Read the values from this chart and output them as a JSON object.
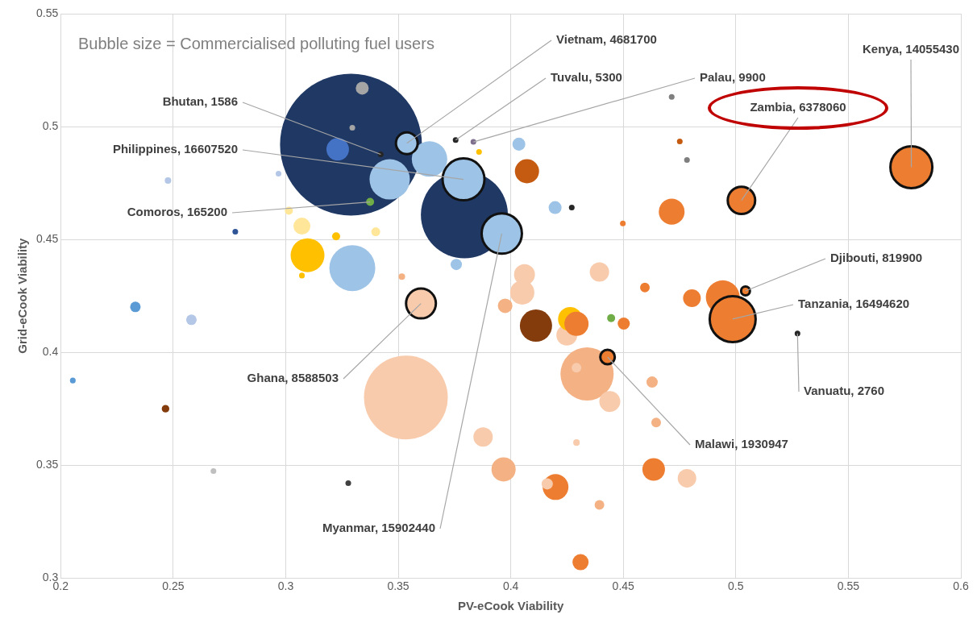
{
  "chart_data": {
    "type": "bubble",
    "xlabel": "PV-eCook Viability",
    "ylabel": "Grid-eCook Viability",
    "xlim": [
      0.2,
      0.6
    ],
    "xticks": [
      0.2,
      0.25,
      0.3,
      0.35,
      0.4,
      0.45,
      0.5,
      0.55,
      0.6
    ],
    "ylim": [
      0.3,
      0.55
    ],
    "yticks": [
      0.3,
      0.35,
      0.4,
      0.45,
      0.5,
      0.55
    ],
    "grid": true,
    "x": [
      0.329,
      0.3534,
      0.3794,
      0.4339,
      0.3296,
      0.4942,
      0.3097,
      0.3639,
      0.3462,
      0.4112,
      0.4249,
      0.4264,
      0.4292,
      0.4715,
      0.4072,
      0.4061,
      0.4051,
      0.3975,
      0.4394,
      0.3968,
      0.4199,
      0.4162,
      0.444,
      0.4292,
      0.3877,
      0.4394,
      0.431,
      0.4292,
      0.4628,
      0.4646,
      0.4635,
      0.4783,
      0.4805,
      0.4596,
      0.4502,
      0.4446,
      0.4498,
      0.4197,
      0.4271,
      0.4036,
      0.3859,
      0.4715,
      0.4751,
      0.4783,
      0.3296,
      0.334,
      0.3231,
      0.3758,
      0.3072,
      0.3014,
      0.3224,
      0.34,
      0.3072,
      0.2776,
      0.2477,
      0.2332,
      0.2581,
      0.2054,
      0.2466,
      0.3516,
      0.2968,
      0.3278,
      0.2679,
      0.3422,
      0.3755,
      0.3834,
      0.5274,
      0.3375,
      0.3538,
      0.379,
      0.396,
      0.3601,
      0.443,
      0.5025,
      0.578,
      0.5043,
      0.4986
    ],
    "values": [
      0.492,
      0.38,
      0.4609,
      0.3904,
      0.4373,
      0.4244,
      0.443,
      0.4856,
      0.4766,
      0.4118,
      0.4076,
      0.4147,
      0.4126,
      0.4623,
      0.4802,
      0.4344,
      0.4265,
      0.4206,
      0.4356,
      0.3481,
      0.3403,
      0.3417,
      0.3782,
      0.3932,
      0.3625,
      0.3324,
      0.307,
      0.36,
      0.3868,
      0.3689,
      0.3481,
      0.3442,
      0.424,
      0.4287,
      0.4127,
      0.4151,
      0.4571,
      0.4641,
      0.4641,
      0.4922,
      0.4888,
      0.5131,
      0.4934,
      0.4852,
      0.4995,
      0.517,
      0.4899,
      0.4389,
      0.4559,
      0.4627,
      0.4514,
      0.4534,
      0.434,
      0.4534,
      0.4761,
      0.4201,
      0.4144,
      0.3875,
      0.375,
      0.4335,
      0.4791,
      0.342,
      0.3474,
      0.4877,
      0.494,
      0.4932,
      0.4083,
      0.4666,
      0.4926,
      0.4766,
      0.4526,
      0.4216,
      0.3979,
      0.4673,
      0.482,
      0.4272,
      0.4147
    ],
    "sizes": [
      1,
      0.3492,
      0.3765,
      0.1406,
      0.1049,
      0.0569,
      0.0569,
      0.0625,
      0.0807,
      0.0517,
      0.0218,
      0.0291,
      0.0291,
      0.0331,
      0.0291,
      0.0218,
      0.0291,
      0.0105,
      0.0186,
      0.0291,
      0.0331,
      0.0063,
      0.0218,
      0.0046,
      0.0186,
      0.0046,
      0.0129,
      0.0021,
      0.0063,
      0.0046,
      0.0253,
      0.0171,
      0.0156,
      0.0046,
      0.0073,
      0.0032,
      0.0016,
      0.0083,
      0.0016,
      0.0083,
      0.0016,
      0.0016,
      0.0016,
      0.0016,
      0.0016,
      0.0083,
      0.0253,
      0.0063,
      0.0142,
      0.0032,
      0.0032,
      0.0039,
      0.0016,
      0.0016,
      0.0021,
      0.0055,
      0.0055,
      0.0016,
      0.0028,
      0.0021,
      0.0016,
      0.0016,
      0.0016,
      0.0016,
      0.0016,
      0.0016,
      0.0016,
      0.0032,
      0.0235,
      0.0873,
      0.0807,
      0.0442,
      0.0105,
      0.0373,
      0.0873,
      0.0039,
      0.1049
    ],
    "colors": [
      "#1f3864",
      "#f8cbad",
      "#1f3864",
      "#f4b183",
      "#9dc3e6",
      "#ed7d31",
      "#ffc000",
      "#9dc3e6",
      "#9dc3e6",
      "#843c0c",
      "#f8cbad",
      "#ffc000",
      "#ed7d31",
      "#ed7d31",
      "#c55a11",
      "#f8cbad",
      "#f8cbad",
      "#f4b183",
      "#f8cbad",
      "#f4b183",
      "#ed7d31",
      "#f8cbad",
      "#f8cbad",
      "#f8cbad",
      "#f8cbad",
      "#f4b183",
      "#ed7d31",
      "#f8cbad",
      "#f4b183",
      "#f4b183",
      "#ed7d31",
      "#f8cbad",
      "#ed7d31",
      "#ed7d31",
      "#ed7d31",
      "#70ad47",
      "#ed7d31",
      "#9dc3e6",
      "#262626",
      "#9dc3e6",
      "#ffc000",
      "#7f7f7f",
      "#c55a11",
      "#7f7f7f",
      "#a5a5a5",
      "#a5a5a5",
      "#4472c4",
      "#9dc3e6",
      "#ffe699",
      "#ffe699",
      "#ffc000",
      "#ffe699",
      "#ffc000",
      "#2f5597",
      "#b4c7e7",
      "#5b9bd5",
      "#b4c7e7",
      "#5b9bd5",
      "#843c0c",
      "#f4b183",
      "#b4c7e7",
      "#404040",
      "#bfbfbf",
      "#262626",
      "#262626",
      "#7f6f8f",
      "#262626",
      "#70ad47",
      "#9dc3e6",
      "#9dc3e6",
      "#9dc3e6",
      "#f8cbad",
      "#ed7d31",
      "#ed7d31",
      "#ed7d31",
      "#ed7d31",
      "#ed7d31"
    ],
    "annotations": [
      "Bubble size = Commercialised polluting fuel users",
      {
        "text": "Vietnam, 4681700",
        "x": 0.3538,
        "y": 0.4926
      },
      {
        "text": "Tuvalu, 5300",
        "x": 0.3755,
        "y": 0.494
      },
      {
        "text": "Palau, 9900",
        "x": 0.3834,
        "y": 0.4932
      },
      {
        "text": "Kenya, 14055430",
        "x": 0.578,
        "y": 0.482
      },
      {
        "text": "Zambia, 6378060",
        "x": 0.5025,
        "y": 0.4673
      },
      {
        "text": "Bhutan, 1586",
        "x": 0.3422,
        "y": 0.4877
      },
      {
        "text": "Philippines, 16607520",
        "x": 0.379,
        "y": 0.4766
      },
      {
        "text": "Comoros, 165200",
        "x": 0.3375,
        "y": 0.4666
      },
      {
        "text": "Djibouti, 819900",
        "x": 0.5043,
        "y": 0.4272
      },
      {
        "text": "Tanzania, 16494620",
        "x": 0.4986,
        "y": 0.4147
      },
      {
        "text": "Ghana, 8588503",
        "x": 0.3601,
        "y": 0.4216
      },
      {
        "text": "Vanuatu, 2760",
        "x": 0.5274,
        "y": 0.4083
      },
      {
        "text": "Malawi, 1930947",
        "x": 0.443,
        "y": 0.3979
      },
      {
        "text": "Myanmar, 15902440",
        "x": 0.396,
        "y": 0.4526
      }
    ]
  }
}
